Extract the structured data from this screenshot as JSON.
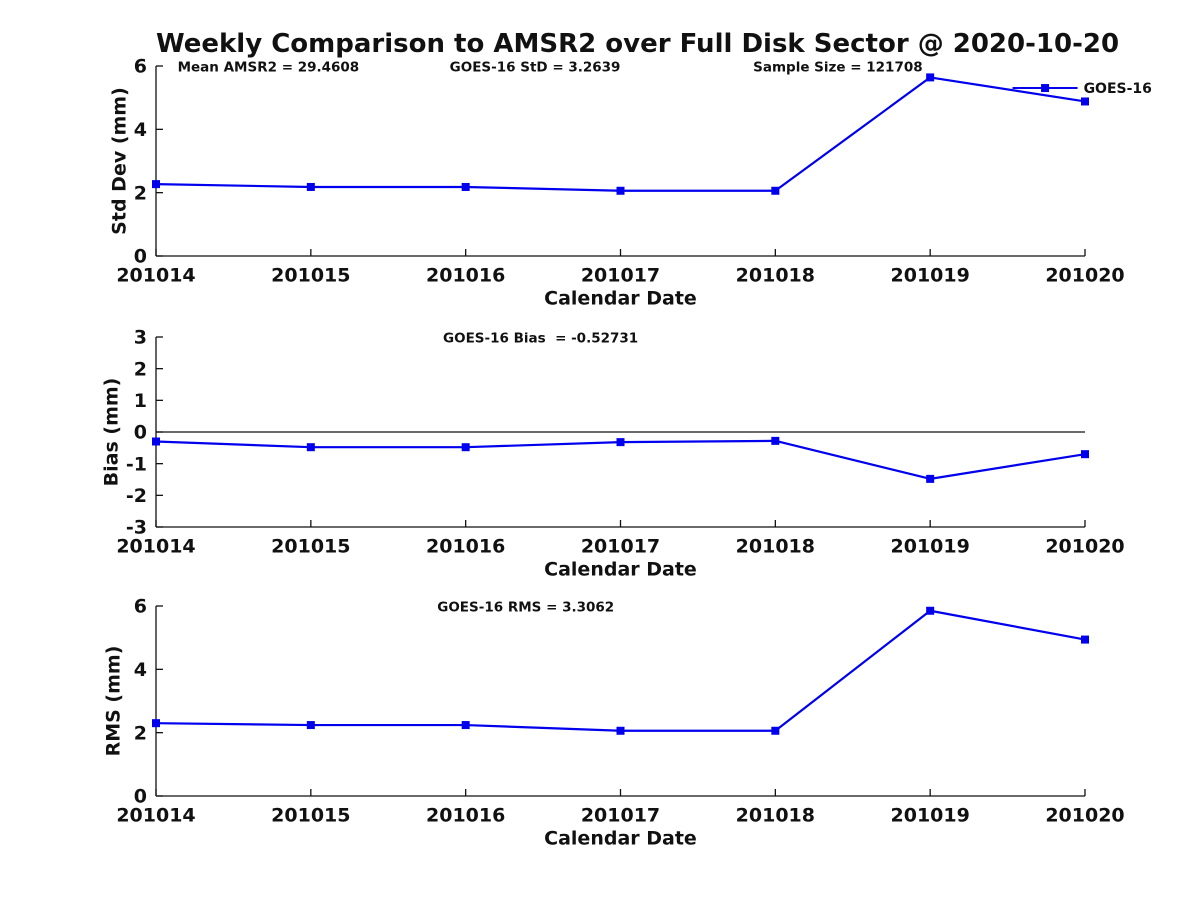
{
  "figure": {
    "title": "Weekly Comparison to AMSR2 over Full Disk Sector @ 2020-10-20",
    "background": "#ffffff",
    "line_color": "#0000EE",
    "text_color": "#111111"
  },
  "chart_data": [
    {
      "type": "line",
      "categories": [
        "201014",
        "201015",
        "201016",
        "201017",
        "201018",
        "201019",
        "201020"
      ],
      "series": [
        {
          "name": "GOES-16",
          "values": [
            2.27,
            2.18,
            2.18,
            2.06,
            2.06,
            5.64,
            4.88
          ]
        }
      ],
      "xlabel": "Calendar Date",
      "ylabel": "Std Dev (mm)",
      "ylim": [
        0,
        6
      ],
      "yticks": [
        0,
        2,
        4,
        6
      ],
      "grid": false,
      "zero_line": false,
      "legend": {
        "entries": [
          "GOES-16"
        ],
        "position": "top-right",
        "box": false
      },
      "annotations": [
        "Mean AMSR2 = 29.4608",
        "GOES-16 StD = 3.2639",
        "Sample Size = 121708"
      ]
    },
    {
      "type": "line",
      "categories": [
        "201014",
        "201015",
        "201016",
        "201017",
        "201018",
        "201019",
        "201020"
      ],
      "series": [
        {
          "name": "GOES-16",
          "values": [
            -0.3,
            -0.48,
            -0.48,
            -0.32,
            -0.28,
            -1.48,
            -0.7
          ]
        }
      ],
      "xlabel": "Calendar Date",
      "ylabel": "Bias (mm)",
      "ylim": [
        -3,
        3
      ],
      "yticks": [
        -3,
        -2,
        -1,
        0,
        1,
        2,
        3
      ],
      "grid": false,
      "zero_line": true,
      "annotations": [
        "GOES-16 Bias  = -0.52731"
      ]
    },
    {
      "type": "line",
      "categories": [
        "201014",
        "201015",
        "201016",
        "201017",
        "201018",
        "201019",
        "201020"
      ],
      "series": [
        {
          "name": "GOES-16",
          "values": [
            2.3,
            2.24,
            2.24,
            2.06,
            2.06,
            5.85,
            4.94
          ]
        }
      ],
      "xlabel": "Calendar Date",
      "ylabel": "RMS (mm)",
      "ylim": [
        0,
        6
      ],
      "yticks": [
        0,
        2,
        4,
        6
      ],
      "grid": false,
      "zero_line": false,
      "annotations": [
        "GOES-16 RMS = 3.3062"
      ]
    }
  ]
}
